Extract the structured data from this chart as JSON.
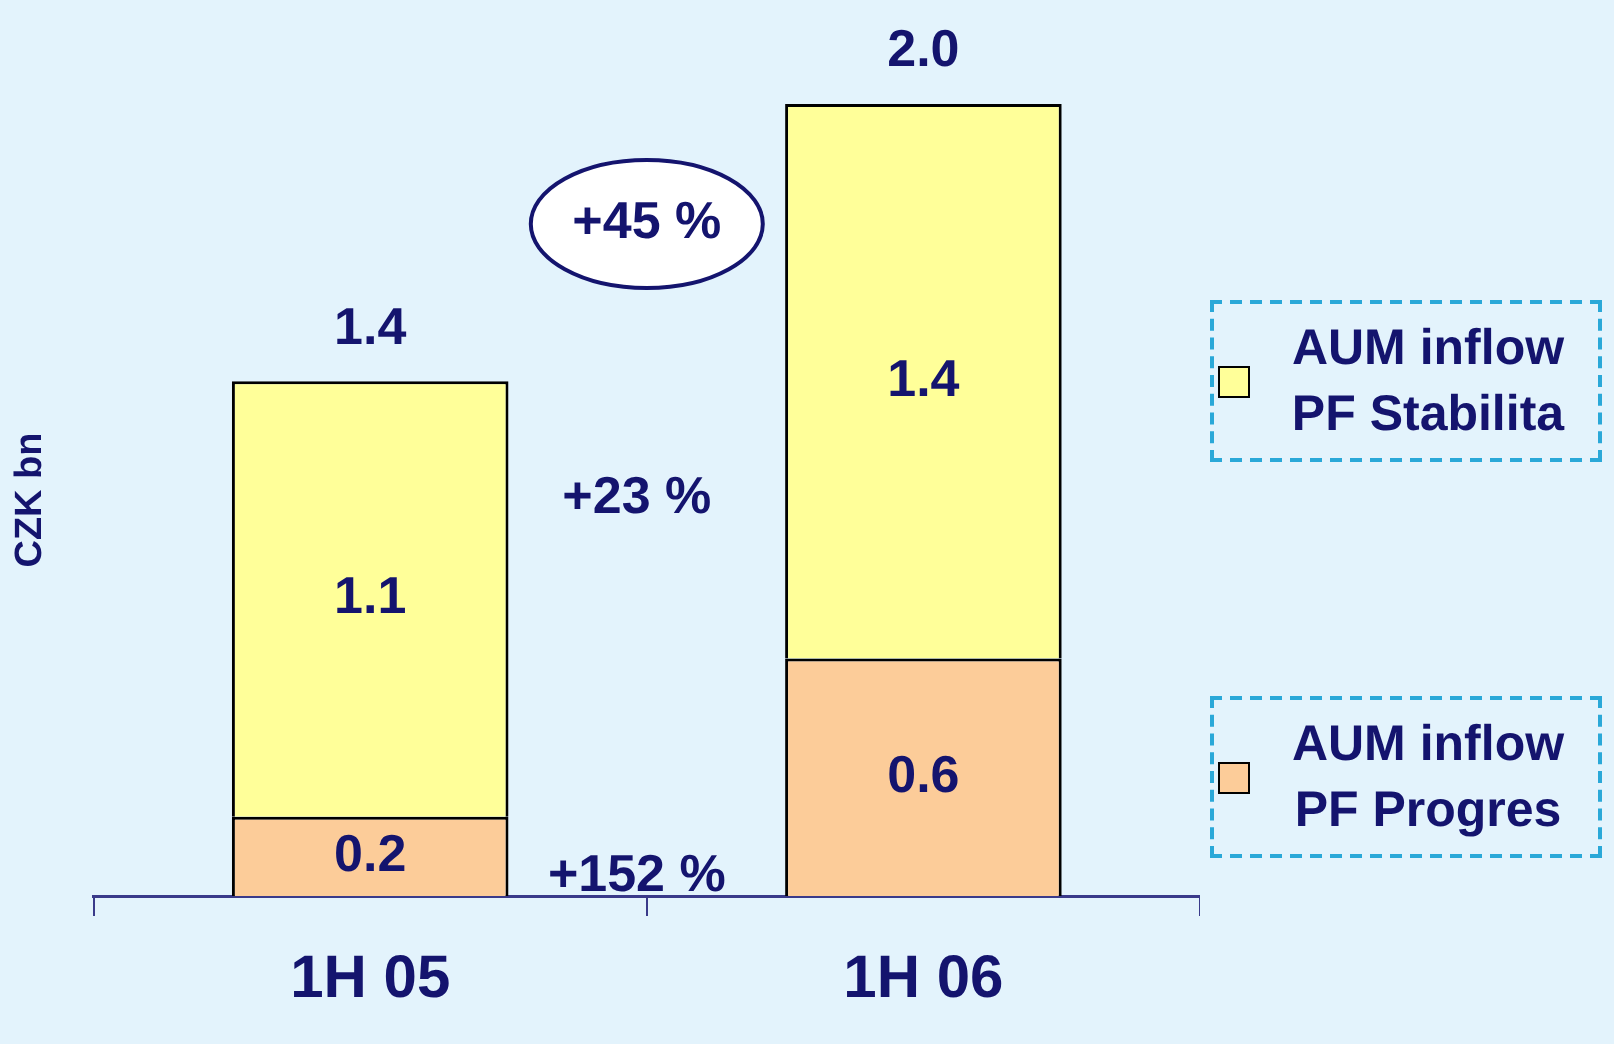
{
  "chart_data": {
    "type": "bar",
    "stacked": true,
    "ylabel": "CZK bn",
    "categories": [
      "1H 05",
      "1H 06"
    ],
    "series": [
      {
        "name": "AUM inflow PF Progres",
        "color": "#fccc99",
        "values": [
          0.2,
          0.6
        ]
      },
      {
        "name": "AUM inflow PF Stabilita",
        "color": "#ffff99",
        "values": [
          1.1,
          1.4
        ]
      }
    ],
    "data_labels": true,
    "totals": [
      "1.4",
      "2.0"
    ],
    "annotations": [
      "+45 %",
      "+23 %",
      "+152 %"
    ],
    "legend": "right",
    "grid": false
  }
}
